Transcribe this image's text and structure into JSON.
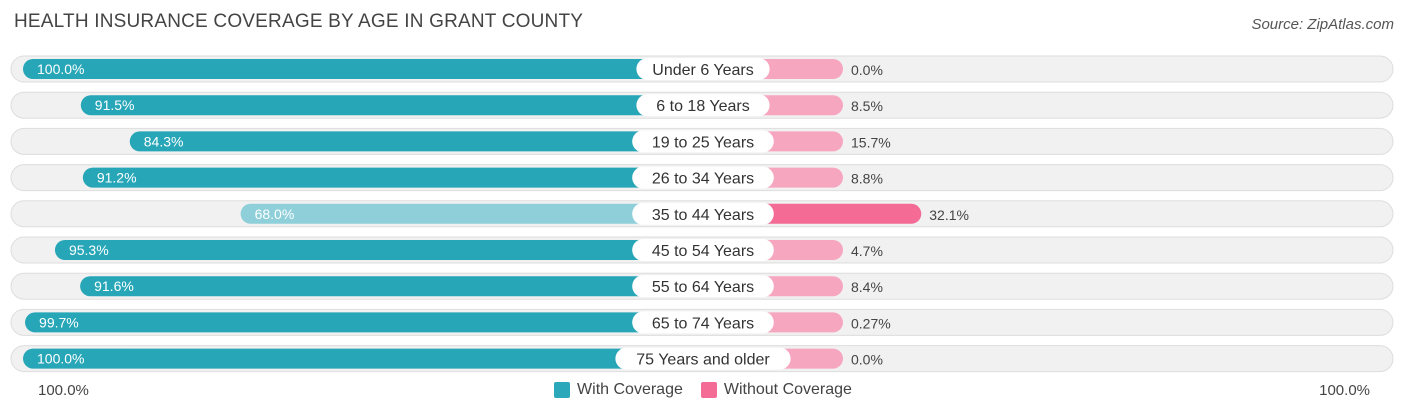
{
  "title": "HEALTH INSURANCE COVERAGE BY AGE IN GRANT COUNTY",
  "source": "Source: ZipAtlas.com",
  "colors": {
    "with_strong": "#27a6b8",
    "with_light": "#8ecfd9",
    "without_strong": "#f46b95",
    "without_light": "#f7a6c0",
    "row_bg": "#f1f1f1",
    "row_border": "#dddddd"
  },
  "axis": {
    "left_label": "100.0%",
    "right_label": "100.0%"
  },
  "legend": [
    {
      "label": "With Coverage",
      "color": "#2ba9ba"
    },
    {
      "label": "Without Coverage",
      "color": "#f46b95"
    }
  ],
  "chart_data": {
    "type": "bar",
    "title": "HEALTH INSURANCE COVERAGE BY AGE IN GRANT COUNTY",
    "orientation": "horizontal-diverging",
    "categories": [
      "Under 6 Years",
      "6 to 18 Years",
      "19 to 25 Years",
      "26 to 34 Years",
      "35 to 44 Years",
      "45 to 54 Years",
      "55 to 64 Years",
      "65 to 74 Years",
      "75 Years and older"
    ],
    "series": [
      {
        "name": "With Coverage",
        "values": [
          100.0,
          91.5,
          84.3,
          91.2,
          68.0,
          95.3,
          91.6,
          99.7,
          100.0
        ],
        "labels": [
          "100.0%",
          "91.5%",
          "84.3%",
          "91.2%",
          "68.0%",
          "95.3%",
          "91.6%",
          "99.7%",
          "100.0%"
        ]
      },
      {
        "name": "Without Coverage",
        "values": [
          0.0,
          8.5,
          15.7,
          8.8,
          32.1,
          4.7,
          8.4,
          0.27,
          0.0
        ],
        "labels": [
          "0.0%",
          "8.5%",
          "15.7%",
          "8.8%",
          "32.1%",
          "4.7%",
          "8.4%",
          "0.27%",
          "0.0%"
        ]
      }
    ],
    "xlim": [
      0,
      100
    ],
    "legend_position": "bottom-center"
  }
}
